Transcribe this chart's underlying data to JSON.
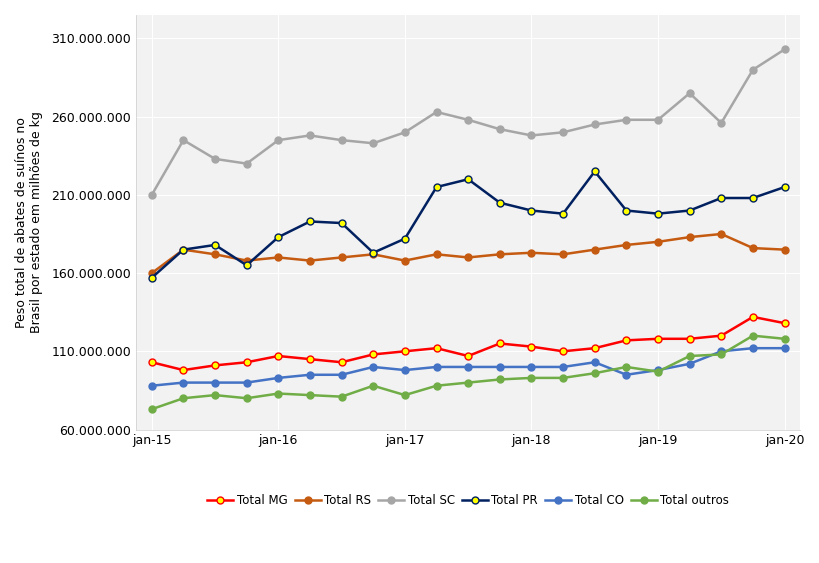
{
  "series": {
    "Total MG": {
      "line_color": "#FF0000",
      "marker_facecolor": "#FFFF00",
      "marker_edgecolor": "#FF0000",
      "values": [
        103000000,
        98000000,
        101000000,
        103000000,
        107000000,
        105000000,
        103000000,
        108000000,
        110000000,
        112000000,
        107000000,
        115000000,
        113000000,
        110000000,
        112000000,
        117000000,
        118000000,
        118000000,
        120000000,
        132000000,
        128000000
      ]
    },
    "Total RS": {
      "line_color": "#C55A11",
      "marker_facecolor": "#C55A11",
      "marker_edgecolor": "#C55A11",
      "values": [
        160000000,
        175000000,
        172000000,
        168000000,
        170000000,
        168000000,
        170000000,
        172000000,
        168000000,
        172000000,
        170000000,
        172000000,
        173000000,
        172000000,
        175000000,
        178000000,
        180000000,
        183000000,
        185000000,
        176000000,
        175000000
      ]
    },
    "Total SC": {
      "line_color": "#A6A6A6",
      "marker_facecolor": "#A6A6A6",
      "marker_edgecolor": "#A6A6A6",
      "values": [
        210000000,
        245000000,
        233000000,
        230000000,
        245000000,
        248000000,
        245000000,
        243000000,
        250000000,
        263000000,
        258000000,
        252000000,
        248000000,
        250000000,
        255000000,
        258000000,
        258000000,
        275000000,
        256000000,
        290000000,
        303000000
      ]
    },
    "Total PR": {
      "line_color": "#002060",
      "marker_facecolor": "#FFFF00",
      "marker_edgecolor": "#002060",
      "values": [
        157000000,
        175000000,
        178000000,
        165000000,
        183000000,
        193000000,
        192000000,
        173000000,
        182000000,
        215000000,
        220000000,
        205000000,
        200000000,
        198000000,
        225000000,
        200000000,
        198000000,
        200000000,
        208000000,
        208000000,
        215000000
      ]
    },
    "Total CO": {
      "line_color": "#4472C4",
      "marker_facecolor": "#4472C4",
      "marker_edgecolor": "#4472C4",
      "values": [
        88000000,
        90000000,
        90000000,
        90000000,
        93000000,
        95000000,
        95000000,
        100000000,
        98000000,
        100000000,
        100000000,
        100000000,
        100000000,
        100000000,
        103000000,
        95000000,
        98000000,
        102000000,
        110000000,
        112000000,
        112000000
      ]
    },
    "Total outros": {
      "line_color": "#70AD47",
      "marker_facecolor": "#70AD47",
      "marker_edgecolor": "#70AD47",
      "values": [
        73000000,
        80000000,
        82000000,
        80000000,
        83000000,
        82000000,
        81000000,
        88000000,
        82000000,
        88000000,
        90000000,
        92000000,
        93000000,
        93000000,
        96000000,
        100000000,
        97000000,
        107000000,
        108000000,
        120000000,
        118000000
      ]
    }
  },
  "series_order": [
    "Total MG",
    "Total RS",
    "Total SC",
    "Total PR",
    "Total CO",
    "Total outros"
  ],
  "x_labels": [
    "jan-15",
    "jan-16",
    "jan-17",
    "jan-18",
    "jan-19",
    "jan-20"
  ],
  "x_ticks": [
    0,
    4,
    8,
    12,
    16,
    20
  ],
  "ylabel": "Peso total de abates de suínos no\nBrasil por estado em milhões de kg",
  "ylim": [
    60000000,
    325000000
  ],
  "yticks": [
    60000000,
    110000000,
    160000000,
    210000000,
    260000000,
    310000000
  ],
  "background_color": "#FFFFFF",
  "plot_bg_color": "#F2F2F2",
  "grid_color": "#FFFFFF"
}
